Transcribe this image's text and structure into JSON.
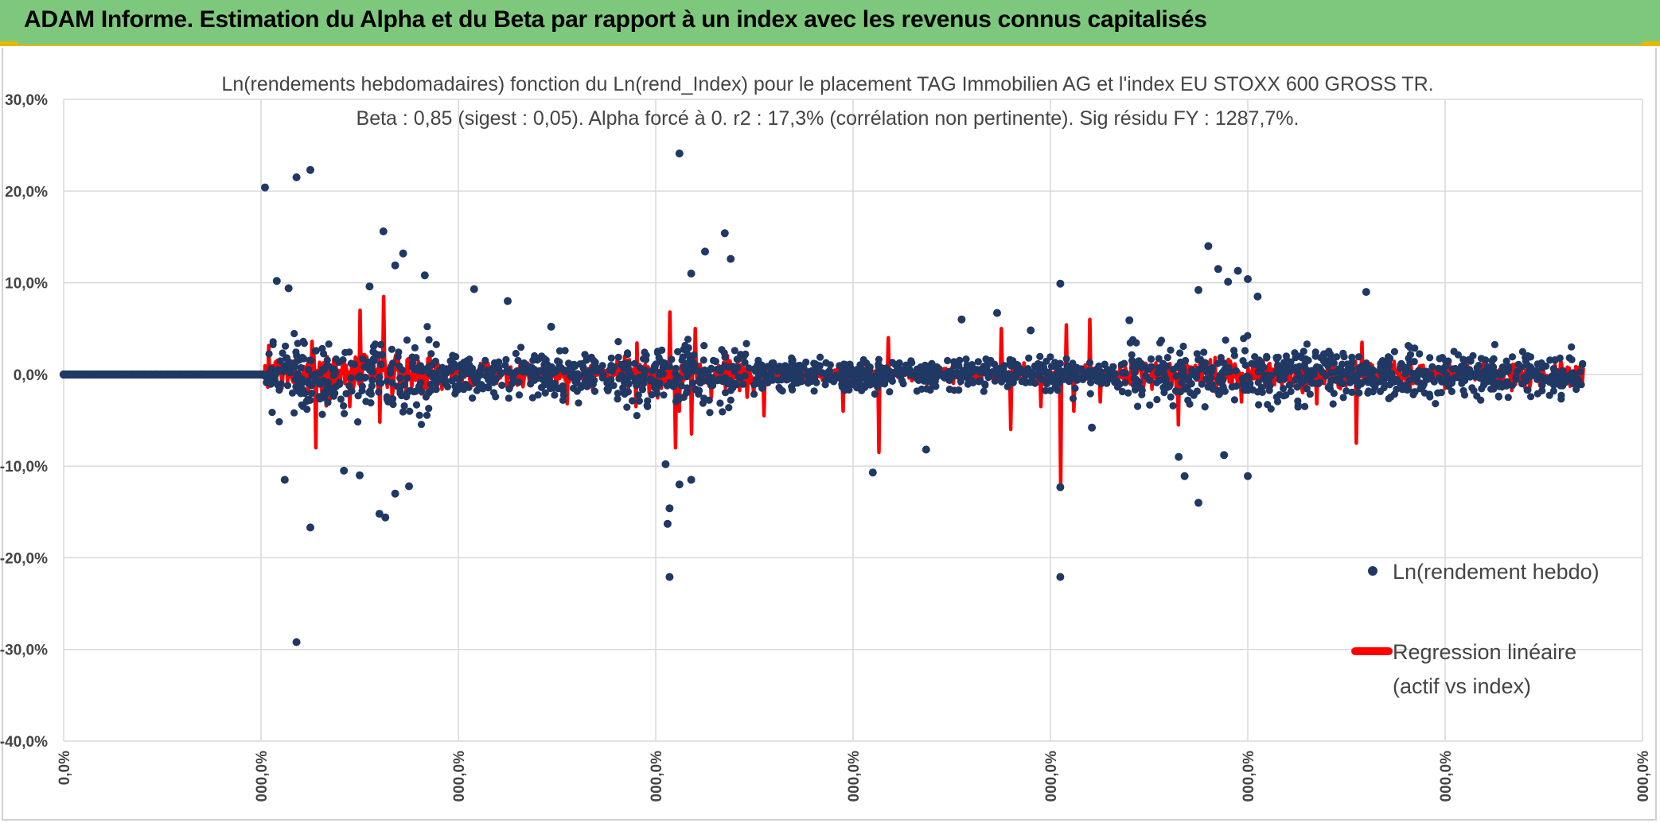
{
  "header": {
    "title": "ADAM Informe. Estimation du Alpha et du Beta par rapport à un index avec les revenus connus capitalisés"
  },
  "colors": {
    "banner": "#7dc87d",
    "accent": "#e8b800",
    "points": "#203864",
    "regression": "#ff0000",
    "grid": "#d9d9d9"
  },
  "chart_data": {
    "type": "scatter",
    "title": "Ln(rendements hebdomadaires) fonction du Ln(rend_Index) pour le placement TAG Immobilien AG et l'index EU STOXX 600 GROSS TR.",
    "subtitle": "Beta : 0,85 (sigest : 0,05). Alpha forcé à 0. r2 : 17,3% (corrélation non pertinente). Sig résidu FY : 1287,7%.",
    "y_ticks": [
      "30,0%",
      "20,0%",
      "10,0%",
      "0,0%",
      "-10,0%",
      "-20,0%",
      "-30,0%",
      "-40,0%"
    ],
    "y_values": [
      30,
      20,
      10,
      0,
      -10,
      -20,
      -30,
      -40
    ],
    "ylim": [
      -40,
      30
    ],
    "x_ticks": [
      "0,0%",
      "000,0%",
      "000,0%",
      "000,0%",
      "000,0%",
      "000,0%",
      "000,0%",
      "000,0%",
      "000,0%"
    ],
    "xlim": [
      0,
      8
    ],
    "grid": true,
    "legend_position": "right",
    "series": [
      {
        "name": "Ln(rendement hebdo)",
        "kind": "points",
        "color": "#203864"
      },
      {
        "name": "Regression linéaire (actif vs index)",
        "name_lines": [
          "Regression linéaire",
          "(actif vs index)"
        ],
        "kind": "line",
        "color": "#ff0000"
      }
    ],
    "flat_segment": {
      "x_from": 0,
      "x_to": 1.02,
      "y": 0
    },
    "noise_range": {
      "x_from": 1.02,
      "x_to": 7.7
    },
    "outliers": [
      {
        "x": 1.02,
        "y": 20.4
      },
      {
        "x": 1.18,
        "y": 21.5
      },
      {
        "x": 1.25,
        "y": 22.3
      },
      {
        "x": 1.18,
        "y": -29.2
      },
      {
        "x": 1.25,
        "y": -16.7
      },
      {
        "x": 1.12,
        "y": -11.5
      },
      {
        "x": 1.08,
        "y": 10.2
      },
      {
        "x": 1.14,
        "y": 9.4
      },
      {
        "x": 1.42,
        "y": -10.5
      },
      {
        "x": 1.55,
        "y": 9.6
      },
      {
        "x": 1.62,
        "y": 15.6
      },
      {
        "x": 1.72,
        "y": 13.2
      },
      {
        "x": 1.68,
        "y": 11.9
      },
      {
        "x": 1.6,
        "y": -15.2
      },
      {
        "x": 1.63,
        "y": -15.6
      },
      {
        "x": 1.75,
        "y": -12.2
      },
      {
        "x": 1.68,
        "y": -13.0
      },
      {
        "x": 1.83,
        "y": 10.8
      },
      {
        "x": 2.08,
        "y": 9.3
      },
      {
        "x": 2.25,
        "y": 8.0
      },
      {
        "x": 1.5,
        "y": -11.0
      },
      {
        "x": 3.12,
        "y": 24.1
      },
      {
        "x": 3.07,
        "y": -22.1
      },
      {
        "x": 3.06,
        "y": -16.3
      },
      {
        "x": 3.07,
        "y": -14.6
      },
      {
        "x": 3.12,
        "y": -12.0
      },
      {
        "x": 3.18,
        "y": -11.5
      },
      {
        "x": 3.25,
        "y": 13.4
      },
      {
        "x": 3.35,
        "y": 15.4
      },
      {
        "x": 3.18,
        "y": 11.0
      },
      {
        "x": 3.38,
        "y": 12.6
      },
      {
        "x": 3.05,
        "y": -9.8
      },
      {
        "x": 4.1,
        "y": -10.7
      },
      {
        "x": 4.37,
        "y": -8.2
      },
      {
        "x": 2.47,
        "y": 5.2
      },
      {
        "x": 5.05,
        "y": 9.9
      },
      {
        "x": 5.05,
        "y": -12.3
      },
      {
        "x": 5.05,
        "y": -22.1
      },
      {
        "x": 5.21,
        "y": -5.8
      },
      {
        "x": 5.68,
        "y": -11.1
      },
      {
        "x": 5.75,
        "y": -14.0
      },
      {
        "x": 5.8,
        "y": 14.0
      },
      {
        "x": 5.85,
        "y": 11.5
      },
      {
        "x": 5.9,
        "y": 10.1
      },
      {
        "x": 5.95,
        "y": 11.3
      },
      {
        "x": 6.0,
        "y": 10.4
      },
      {
        "x": 6.05,
        "y": 8.5
      },
      {
        "x": 5.75,
        "y": 9.2
      },
      {
        "x": 5.88,
        "y": -8.8
      },
      {
        "x": 6.0,
        "y": -11.1
      },
      {
        "x": 6.6,
        "y": 9.0
      },
      {
        "x": 5.65,
        "y": -9.0
      },
      {
        "x": 4.55,
        "y": 6.0
      },
      {
        "x": 4.73,
        "y": 6.7
      },
      {
        "x": 4.9,
        "y": 4.8
      },
      {
        "x": 5.4,
        "y": 5.9
      }
    ],
    "spikes": [
      {
        "x": 1.28,
        "y": -8.0
      },
      {
        "x": 1.26,
        "y": 3.6
      },
      {
        "x": 1.5,
        "y": 7.0
      },
      {
        "x": 1.62,
        "y": 8.5
      },
      {
        "x": 1.6,
        "y": -5.2
      },
      {
        "x": 1.45,
        "y": -3.5
      },
      {
        "x": 3.07,
        "y": 6.8
      },
      {
        "x": 3.1,
        "y": -8.0
      },
      {
        "x": 3.18,
        "y": -6.5
      },
      {
        "x": 3.2,
        "y": 5.0
      },
      {
        "x": 3.12,
        "y": -4.0
      },
      {
        "x": 2.9,
        "y": -3.5
      },
      {
        "x": 4.13,
        "y": -8.5
      },
      {
        "x": 4.18,
        "y": 4.0
      },
      {
        "x": 5.05,
        "y": -12.3
      },
      {
        "x": 5.08,
        "y": 5.4
      },
      {
        "x": 5.12,
        "y": -4.0
      },
      {
        "x": 5.2,
        "y": 6.0
      },
      {
        "x": 5.25,
        "y": -3.0
      },
      {
        "x": 5.65,
        "y": -5.5
      },
      {
        "x": 6.55,
        "y": -7.5
      },
      {
        "x": 6.58,
        "y": 3.5
      },
      {
        "x": 3.55,
        "y": -4.5
      },
      {
        "x": 3.95,
        "y": -4.0
      },
      {
        "x": 4.75,
        "y": 5.0
      },
      {
        "x": 4.8,
        "y": -6.0
      },
      {
        "x": 2.55,
        "y": -3.2
      },
      {
        "x": 4.95,
        "y": -3.5
      },
      {
        "x": 5.97,
        "y": -3.0
      },
      {
        "x": 6.35,
        "y": -3.2
      }
    ]
  }
}
